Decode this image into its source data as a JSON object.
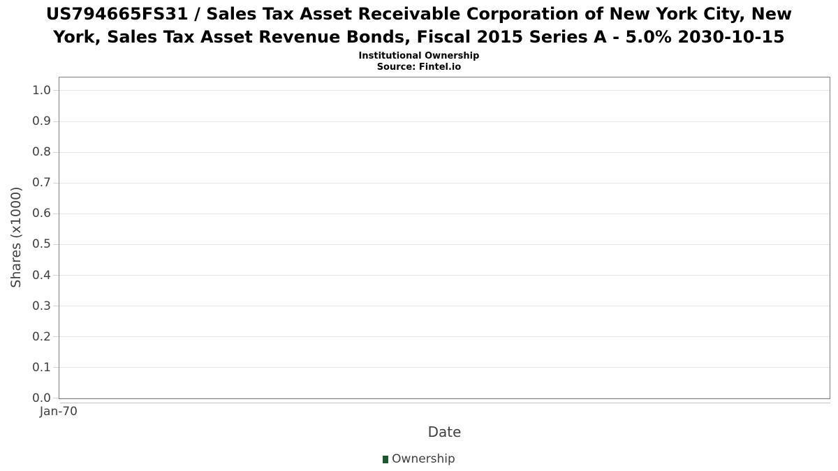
{
  "header": {
    "title": "US794665FS31 / Sales Tax Asset Receivable Corporation of New York City, New York, Sales Tax Asset Revenue Bonds, Fiscal 2015 Series A - 5.0% 2030-10-15",
    "title_lines": [
      "US794665FS31 / Sales Tax Asset Receivable Corporation of New York City, New",
      "York, Sales Tax Asset Revenue Bonds, Fiscal 2015 Series A - 5.0% 2030-10-15"
    ],
    "subtitle": "Institutional Ownership",
    "source": "Source: Fintel.io"
  },
  "colors": {
    "background": "#ffffff",
    "title": "#000000",
    "axis_text": "#3f3f3f",
    "plot_border": "#808080",
    "gridline": "#e5e5e5",
    "tick": "#d4d4d4",
    "axis_line": "#c4c4c4",
    "series_ownership": "#1f5631"
  },
  "chart_data": {
    "type": "line",
    "title": "US794665FS31 / Sales Tax Asset Receivable Corporation of New York City, New York, Sales Tax Asset Revenue Bonds, Fiscal 2015 Series A - 5.0% 2030-10-15",
    "subtitle": "Institutional Ownership",
    "source": "Source: Fintel.io",
    "xlabel": "Date",
    "ylabel": "Shares (x1000)",
    "x_ticks": [
      "Jan-70"
    ],
    "y_ticks": [
      "0.0",
      "0.1",
      "0.2",
      "0.3",
      "0.4",
      "0.5",
      "0.6",
      "0.7",
      "0.8",
      "0.9",
      "1.0"
    ],
    "ylim": [
      0,
      1.043
    ],
    "grid": "horizontal",
    "legend_position": "bottom-center",
    "legend": [
      {
        "label": "Ownership",
        "color": "#1f5631"
      }
    ],
    "series": [
      {
        "name": "Ownership",
        "x": [],
        "y": []
      }
    ]
  }
}
